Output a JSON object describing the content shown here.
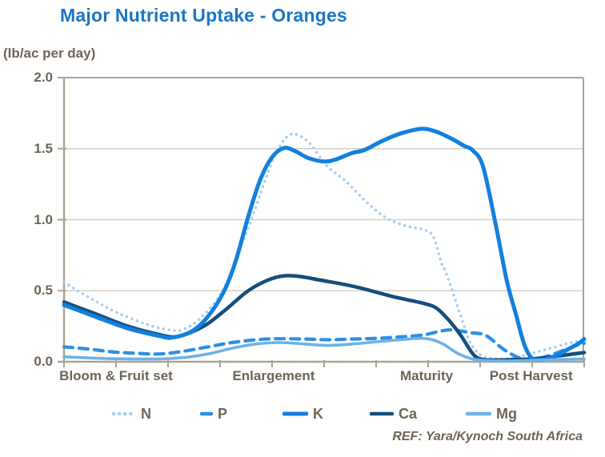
{
  "header": {
    "title": "Major Nutrient Uptake - Oranges",
    "units_label": "(lb/ac per day)",
    "ref_note": "REF: Yara/Kynoch South Africa"
  },
  "colors": {
    "title": "#1a76c4",
    "text": "#6e6456",
    "axis": "#ada394",
    "grid": "#d7d1c7"
  },
  "chart_data": {
    "type": "line",
    "title": "Major Nutrient Uptake - Oranges",
    "ylabel": "(lb/ac per day)",
    "xlabel": "",
    "ylim": [
      0,
      2.0
    ],
    "yticks": [
      0.0,
      0.5,
      1.0,
      1.5,
      2.0
    ],
    "ytick_labels": [
      "0.0",
      "0.5",
      "1.0",
      "1.5",
      "2.0"
    ],
    "x_range": [
      0,
      10
    ],
    "x_tick_count": 11,
    "grid": "horizontal-only",
    "legend_position": "bottom",
    "stages": [
      {
        "label": "Bloom & Fruit set",
        "t": 1.0
      },
      {
        "label": "Enlargement",
        "t": 4.03
      },
      {
        "label": "Maturity",
        "t": 6.97
      },
      {
        "label": "Post Harvest",
        "t": 8.98
      }
    ],
    "series": [
      {
        "name": "N",
        "style": "dotted",
        "color": "#a9cff2",
        "points": [
          [
            0,
            0.56
          ],
          [
            0.54,
            0.44
          ],
          [
            1,
            0.35
          ],
          [
            1.54,
            0.27
          ],
          [
            2,
            0.225
          ],
          [
            2.31,
            0.23
          ],
          [
            2.69,
            0.33
          ],
          [
            3.08,
            0.52
          ],
          [
            3.38,
            0.8
          ],
          [
            3.62,
            1.02
          ],
          [
            3.85,
            1.26
          ],
          [
            4.08,
            1.47
          ],
          [
            4.35,
            1.6
          ],
          [
            4.69,
            1.55
          ],
          [
            5.05,
            1.38
          ],
          [
            5.42,
            1.27
          ],
          [
            5.77,
            1.14
          ],
          [
            6.12,
            1.03
          ],
          [
            6.38,
            0.98
          ],
          [
            6.65,
            0.95
          ],
          [
            6.92,
            0.93
          ],
          [
            7.1,
            0.88
          ],
          [
            7.26,
            0.69
          ],
          [
            7.34,
            0.63
          ],
          [
            7.62,
            0.33
          ],
          [
            7.8,
            0.14
          ],
          [
            8,
            0.05
          ],
          [
            8.2,
            0.025
          ],
          [
            8.5,
            0.02
          ],
          [
            8.8,
            0.04
          ],
          [
            9.1,
            0.07
          ],
          [
            9.4,
            0.1
          ],
          [
            9.7,
            0.13
          ],
          [
            10,
            0.15
          ]
        ]
      },
      {
        "name": "P",
        "style": "dashed",
        "color": "#2e8fe2",
        "points": [
          [
            0,
            0.105
          ],
          [
            0.46,
            0.09
          ],
          [
            0.92,
            0.07
          ],
          [
            1.38,
            0.06
          ],
          [
            1.85,
            0.055
          ],
          [
            2.31,
            0.075
          ],
          [
            2.77,
            0.105
          ],
          [
            3.23,
            0.135
          ],
          [
            3.69,
            0.155
          ],
          [
            4.08,
            0.162
          ],
          [
            4.62,
            0.16
          ],
          [
            5.08,
            0.155
          ],
          [
            5.54,
            0.16
          ],
          [
            6,
            0.165
          ],
          [
            6.46,
            0.175
          ],
          [
            6.92,
            0.19
          ],
          [
            7.23,
            0.215
          ],
          [
            7.46,
            0.225
          ],
          [
            7.8,
            0.205
          ],
          [
            8.11,
            0.185
          ],
          [
            8.46,
            0.085
          ],
          [
            8.77,
            0.025
          ],
          [
            9,
            0.015
          ],
          [
            9.3,
            0.04
          ],
          [
            9.6,
            0.08
          ],
          [
            9.85,
            0.115
          ],
          [
            10,
            0.13
          ]
        ]
      },
      {
        "name": "K",
        "style": "solid",
        "color": "#1280df",
        "points": [
          [
            0,
            0.4
          ],
          [
            0.62,
            0.315
          ],
          [
            1.23,
            0.235
          ],
          [
            1.85,
            0.18
          ],
          [
            2.08,
            0.17
          ],
          [
            2.46,
            0.215
          ],
          [
            2.77,
            0.32
          ],
          [
            3.08,
            0.5
          ],
          [
            3.31,
            0.72
          ],
          [
            3.54,
            1.02
          ],
          [
            3.77,
            1.28
          ],
          [
            4,
            1.44
          ],
          [
            4.23,
            1.505
          ],
          [
            4.46,
            1.48
          ],
          [
            4.69,
            1.435
          ],
          [
            5,
            1.41
          ],
          [
            5.23,
            1.425
          ],
          [
            5.54,
            1.47
          ],
          [
            5.77,
            1.49
          ],
          [
            6.15,
            1.56
          ],
          [
            6.5,
            1.61
          ],
          [
            6.88,
            1.64
          ],
          [
            7.15,
            1.62
          ],
          [
            7.45,
            1.57
          ],
          [
            7.69,
            1.52
          ],
          [
            7.85,
            1.49
          ],
          [
            8.05,
            1.38
          ],
          [
            8.28,
            1.0
          ],
          [
            8.51,
            0.575
          ],
          [
            8.69,
            0.33
          ],
          [
            8.85,
            0.12
          ],
          [
            9,
            0.025
          ],
          [
            9.2,
            0.015
          ],
          [
            9.45,
            0.04
          ],
          [
            9.7,
            0.09
          ],
          [
            9.9,
            0.13
          ],
          [
            10,
            0.16
          ]
        ]
      },
      {
        "name": "Ca",
        "style": "solid",
        "color": "#154e7d",
        "points": [
          [
            0,
            0.42
          ],
          [
            0.62,
            0.335
          ],
          [
            1.23,
            0.25
          ],
          [
            1.85,
            0.19
          ],
          [
            2.15,
            0.175
          ],
          [
            2.46,
            0.21
          ],
          [
            2.77,
            0.27
          ],
          [
            3.15,
            0.38
          ],
          [
            3.54,
            0.5
          ],
          [
            3.92,
            0.575
          ],
          [
            4.23,
            0.605
          ],
          [
            4.54,
            0.6
          ],
          [
            4.92,
            0.575
          ],
          [
            5.38,
            0.545
          ],
          [
            5.69,
            0.52
          ],
          [
            6,
            0.49
          ],
          [
            6.31,
            0.46
          ],
          [
            6.62,
            0.435
          ],
          [
            6.92,
            0.41
          ],
          [
            7.15,
            0.38
          ],
          [
            7.38,
            0.3
          ],
          [
            7.62,
            0.19
          ],
          [
            7.85,
            0.06
          ],
          [
            8,
            0.02
          ],
          [
            8.23,
            0.012
          ],
          [
            8.62,
            0.015
          ],
          [
            9,
            0.02
          ],
          [
            9.38,
            0.035
          ],
          [
            9.69,
            0.05
          ],
          [
            10,
            0.065
          ]
        ]
      },
      {
        "name": "Mg",
        "style": "solid",
        "color": "#6db2e7",
        "points": [
          [
            0,
            0.035
          ],
          [
            0.62,
            0.025
          ],
          [
            1.23,
            0.02
          ],
          [
            1.85,
            0.02
          ],
          [
            2.31,
            0.03
          ],
          [
            2.77,
            0.055
          ],
          [
            3.23,
            0.095
          ],
          [
            3.69,
            0.125
          ],
          [
            4.15,
            0.135
          ],
          [
            4.62,
            0.125
          ],
          [
            5.08,
            0.115
          ],
          [
            5.54,
            0.125
          ],
          [
            6,
            0.14
          ],
          [
            6.46,
            0.155
          ],
          [
            6.85,
            0.165
          ],
          [
            7.08,
            0.155
          ],
          [
            7.31,
            0.12
          ],
          [
            7.54,
            0.065
          ],
          [
            7.77,
            0.028
          ],
          [
            8,
            0.012
          ],
          [
            8.46,
            0.006
          ],
          [
            9,
            0.01
          ],
          [
            9.5,
            0.015
          ],
          [
            10,
            0.02
          ]
        ]
      }
    ]
  }
}
